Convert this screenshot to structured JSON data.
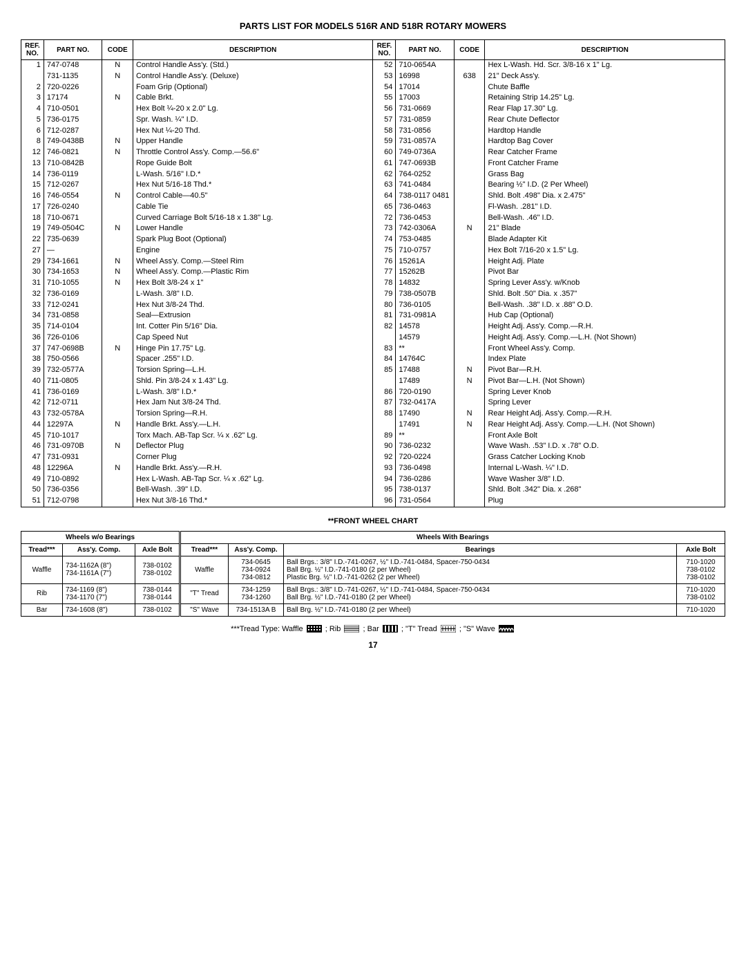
{
  "title": "PARTS LIST FOR MODELS 516R AND 518R ROTARY MOWERS",
  "headers": {
    "ref": "REF.\nNO.",
    "part": "PART\nNO.",
    "code": "CODE",
    "desc": "DESCRIPTION"
  },
  "left": [
    {
      "ref": "1",
      "part": "747-0748",
      "code": "N",
      "desc": "Control Handle Ass'y. (Std.)"
    },
    {
      "ref": "",
      "part": "731-1135",
      "code": "N",
      "desc": "Control Handle Ass'y. (Deluxe)"
    },
    {
      "ref": "2",
      "part": "720-0226",
      "code": "",
      "desc": "Foam Grip (Optional)"
    },
    {
      "ref": "3",
      "part": "17174",
      "code": "N",
      "desc": "Cable Brkt."
    },
    {
      "ref": "4",
      "part": "710-0501",
      "code": "",
      "desc": "Hex Bolt ¼-20 x 2.0\" Lg."
    },
    {
      "ref": "5",
      "part": "736-0175",
      "code": "",
      "desc": "Spr. Wash. ¼\" I.D."
    },
    {
      "ref": "6",
      "part": "712-0287",
      "code": "",
      "desc": "Hex Nut ¼-20 Thd."
    },
    {
      "ref": "8",
      "part": "749-0438B",
      "code": "N",
      "desc": "Upper Handle"
    },
    {
      "ref": "12",
      "part": "746-0821",
      "code": "N",
      "desc": "Throttle Control Ass'y. Comp.—56.6\""
    },
    {
      "ref": "13",
      "part": "710-0842B",
      "code": "",
      "desc": "Rope Guide Bolt"
    },
    {
      "ref": "14",
      "part": "736-0119",
      "code": "",
      "desc": "L-Wash. 5/16\" I.D.*"
    },
    {
      "ref": "15",
      "part": "712-0267",
      "code": "",
      "desc": "Hex Nut 5/16-18 Thd.*"
    },
    {
      "ref": "16",
      "part": "746-0554",
      "code": "N",
      "desc": "Control Cable—40.5\""
    },
    {
      "ref": "17",
      "part": "726-0240",
      "code": "",
      "desc": "Cable Tie"
    },
    {
      "ref": "18",
      "part": "710-0671",
      "code": "",
      "desc": "Curved Carriage Bolt 5/16-18 x 1.38\" Lg."
    },
    {
      "ref": "19",
      "part": "749-0504C",
      "code": "N",
      "desc": "Lower Handle"
    },
    {
      "ref": "22",
      "part": "735-0639",
      "code": "",
      "desc": "Spark Plug Boot (Optional)"
    },
    {
      "ref": "27",
      "part": "—",
      "code": "",
      "desc": "Engine"
    },
    {
      "ref": "29",
      "part": "734-1661",
      "code": "N",
      "desc": "Wheel Ass'y. Comp.—Steel Rim"
    },
    {
      "ref": "30",
      "part": "734-1653",
      "code": "N",
      "desc": "Wheel Ass'y. Comp.—Plastic Rim"
    },
    {
      "ref": "31",
      "part": "710-1055",
      "code": "N",
      "desc": "Hex Bolt 3/8-24 x 1\""
    },
    {
      "ref": "32",
      "part": "736-0169",
      "code": "",
      "desc": "L-Wash. 3/8\" I.D."
    },
    {
      "ref": "33",
      "part": "712-0241",
      "code": "",
      "desc": "Hex Nut 3/8-24 Thd."
    },
    {
      "ref": "34",
      "part": "731-0858",
      "code": "",
      "desc": "Seal—Extrusion"
    },
    {
      "ref": "35",
      "part": "714-0104",
      "code": "",
      "desc": "Int. Cotter Pin 5/16\" Dia."
    },
    {
      "ref": "36",
      "part": "726-0106",
      "code": "",
      "desc": "Cap Speed Nut"
    },
    {
      "ref": "37",
      "part": "747-0698B",
      "code": "N",
      "desc": "Hinge Pin 17.75\" Lg."
    },
    {
      "ref": "38",
      "part": "750-0566",
      "code": "",
      "desc": "Spacer .255\" I.D."
    },
    {
      "ref": "39",
      "part": "732-0577A",
      "code": "",
      "desc": "Torsion Spring—L.H."
    },
    {
      "ref": "40",
      "part": "711-0805",
      "code": "",
      "desc": "Shld. Pin 3/8-24 x 1.43\" Lg."
    },
    {
      "ref": "41",
      "part": "736-0169",
      "code": "",
      "desc": "L-Wash. 3/8\" I.D.*"
    },
    {
      "ref": "42",
      "part": "712-0711",
      "code": "",
      "desc": "Hex Jam Nut 3/8-24 Thd."
    },
    {
      "ref": "43",
      "part": "732-0578A",
      "code": "",
      "desc": "Torsion Spring—R.H."
    },
    {
      "ref": "44",
      "part": "12297A",
      "code": "N",
      "desc": "Handle Brkt. Ass'y.—L.H."
    },
    {
      "ref": "45",
      "part": "710-1017",
      "code": "",
      "desc": "Torx Mach. AB-Tap Scr. ¼ x .62\" Lg."
    },
    {
      "ref": "46",
      "part": "731-0970B",
      "code": "N",
      "desc": "Deflector Plug"
    },
    {
      "ref": "47",
      "part": "731-0931",
      "code": "",
      "desc": "Corner Plug"
    },
    {
      "ref": "48",
      "part": "12296A",
      "code": "N",
      "desc": "Handle Brkt. Ass'y.—R.H."
    },
    {
      "ref": "49",
      "part": "710-0892",
      "code": "",
      "desc": "Hex L-Wash. AB-Tap Scr. ¼ x .62\" Lg."
    },
    {
      "ref": "50",
      "part": "736-0356",
      "code": "",
      "desc": "Bell-Wash. .39\" I.D."
    },
    {
      "ref": "51",
      "part": "712-0798",
      "code": "",
      "desc": "Hex Nut 3/8-16 Thd.*"
    }
  ],
  "right": [
    {
      "ref": "52",
      "part": "710-0654A",
      "code": "",
      "desc": "Hex L-Wash. Hd. Scr. 3/8-16 x 1\" Lg."
    },
    {
      "ref": "53",
      "part": "16998",
      "code": "638",
      "desc": "21\" Deck Ass'y."
    },
    {
      "ref": "54",
      "part": "17014",
      "code": "",
      "desc": "Chute Baffle"
    },
    {
      "ref": "55",
      "part": "17003",
      "code": "",
      "desc": "Retaining Strip 14.25\" Lg."
    },
    {
      "ref": "56",
      "part": "731-0669",
      "code": "",
      "desc": "Rear Flap 17.30\" Lg."
    },
    {
      "ref": "57",
      "part": "731-0859",
      "code": "",
      "desc": "Rear Chute Deflector"
    },
    {
      "ref": "58",
      "part": "731-0856",
      "code": "",
      "desc": "Hardtop Handle"
    },
    {
      "ref": "59",
      "part": "731-0857A",
      "code": "",
      "desc": "Hardtop Bag Cover"
    },
    {
      "ref": "60",
      "part": "749-0736A",
      "code": "",
      "desc": "Rear Catcher Frame"
    },
    {
      "ref": "61",
      "part": "747-0693B",
      "code": "",
      "desc": "Front Catcher Frame"
    },
    {
      "ref": "62",
      "part": "764-0252",
      "code": "",
      "desc": "Grass Bag"
    },
    {
      "ref": "63",
      "part": "741-0484",
      "code": "",
      "desc": "Bearing ½\" I.D. (2 Per Wheel)"
    },
    {
      "ref": "64",
      "part": "738-0117 0481",
      "code": "",
      "desc": "Shld. Bolt .498\" Dia. x 2.475\""
    },
    {
      "ref": "65",
      "part": "736-0463",
      "code": "",
      "desc": "Fl-Wash. .281\" I.D."
    },
    {
      "ref": "72",
      "part": "736-0453",
      "code": "",
      "desc": "Bell-Wash. .46\" I.D."
    },
    {
      "ref": "73",
      "part": "742-0306A",
      "code": "N",
      "desc": "21\" Blade"
    },
    {
      "ref": "74",
      "part": "753-0485",
      "code": "",
      "desc": "Blade Adapter Kit"
    },
    {
      "ref": "75",
      "part": "710-0757",
      "code": "",
      "desc": "Hex Bolt 7/16-20 x 1.5\" Lg."
    },
    {
      "ref": "76",
      "part": "15261A",
      "code": "",
      "desc": "Height Adj. Plate"
    },
    {
      "ref": "77",
      "part": "15262B",
      "code": "",
      "desc": "Pivot Bar"
    },
    {
      "ref": "78",
      "part": "14832",
      "code": "",
      "desc": "Spring Lever Ass'y. w/Knob"
    },
    {
      "ref": "79",
      "part": "738-0507B",
      "code": "",
      "desc": "Shld. Bolt .50\" Dia. x .357\""
    },
    {
      "ref": "80",
      "part": "736-0105",
      "code": "",
      "desc": "Bell-Wash. .38\" I.D. x .88\" O.D."
    },
    {
      "ref": "81",
      "part": "731-0981A",
      "code": "",
      "desc": "Hub Cap (Optional)"
    },
    {
      "ref": "82",
      "part": "14578",
      "code": "",
      "desc": "Height Adj. Ass'y. Comp.—R.H."
    },
    {
      "ref": "",
      "part": "14579",
      "code": "",
      "desc": "Height Adj. Ass'y. Comp.—L.H. (Not Shown)"
    },
    {
      "ref": "83",
      "part": "**",
      "code": "",
      "desc": "Front Wheel Ass'y. Comp."
    },
    {
      "ref": "84",
      "part": "14764C",
      "code": "",
      "desc": "Index Plate"
    },
    {
      "ref": "85",
      "part": "17488",
      "code": "N",
      "desc": "Pivot Bar—R.H."
    },
    {
      "ref": "",
      "part": "17489",
      "code": "N",
      "desc": "Pivot Bar—L.H. (Not Shown)"
    },
    {
      "ref": "86",
      "part": "720-0190",
      "code": "",
      "desc": "Spring Lever Knob"
    },
    {
      "ref": "87",
      "part": "732-0417A",
      "code": "",
      "desc": "Spring Lever"
    },
    {
      "ref": "88",
      "part": "17490",
      "code": "N",
      "desc": "Rear Height Adj. Ass'y. Comp.—R.H."
    },
    {
      "ref": "",
      "part": "17491",
      "code": "N",
      "desc": "Rear Height Adj. Ass'y. Comp.—L.H. (Not Shown)"
    },
    {
      "ref": "89",
      "part": "**",
      "code": "",
      "desc": "Front Axle Bolt"
    },
    {
      "ref": "90",
      "part": "736-0232",
      "code": "",
      "desc": "Wave Wash. .53\" I.D. x .78\" O.D."
    },
    {
      "ref": "92",
      "part": "720-0224",
      "code": "",
      "desc": "Grass Catcher Locking Knob"
    },
    {
      "ref": "93",
      "part": "736-0498",
      "code": "",
      "desc": "Internal L-Wash. ¼\" I.D."
    },
    {
      "ref": "94",
      "part": "736-0286",
      "code": "",
      "desc": "Wave Washer 3/8\" I.D."
    },
    {
      "ref": "95",
      "part": "738-0137",
      "code": "",
      "desc": "Shld. Bolt .342\" Dia. x .268\""
    },
    {
      "ref": "96",
      "part": "731-0564",
      "code": "",
      "desc": "Plug"
    }
  ],
  "wheelChart": {
    "title": "**FRONT WHEEL CHART",
    "groupA": "Wheels w/o Bearings",
    "groupB": "Wheels With Bearings",
    "hdr": {
      "tread": "Tread***",
      "assy": "Ass'y. Comp.",
      "axle": "Axle Bolt",
      "bearings": "Bearings"
    },
    "rows": [
      {
        "treadA": "Waffle",
        "assyA": "734-1162A (8\")\n734-1161A (7\")",
        "axleA": "738-0102\n738-0102",
        "treadB": "Waffle",
        "assyB": "734-0645\n734-0924\n734-0812",
        "bear": "Ball Brgs.: 3/8\" I.D.-741-0267, ½\" I.D.-741-0484, Spacer-750-0434\nBall Brg. ½\" I.D.-741-0180 (2 per Wheel)\nPlastic Brg. ½\" I.D.-741-0262 (2 per Wheel)",
        "axleB": "710-1020\n738-0102\n738-0102"
      },
      {
        "treadA": "Rib",
        "assyA": "734-1169 (8\")\n734-1170 (7\")",
        "axleA": "738-0144\n738-0144",
        "treadB": "\"T\" Tread",
        "assyB": "734-1259\n734-1260",
        "bear": "Ball Brgs.: 3/8\" I.D.-741-0267, ½\" I.D.-741-0484, Spacer-750-0434\nBall Brg. ½\" I.D.-741-0180 (2 per Wheel)",
        "axleB": "710-1020\n738-0102"
      },
      {
        "treadA": "Bar",
        "assyA": "734-1608 (8\")",
        "axleA": "738-0102",
        "treadB": "\"S\" Wave",
        "assyB": "734-1513A B",
        "bear": "Ball Brg. ½\" I.D.-741-0180 (2 per Wheel)",
        "axleB": "710-1020"
      }
    ]
  },
  "footnote": {
    "prefix": "***Tread Type: Waffle ",
    "rib": " ; Rib ",
    "bar": " ; Bar ",
    "ttread": " ; \"T\" Tread ",
    "swave": " ; \"S\" Wave "
  },
  "pagenum": "17"
}
